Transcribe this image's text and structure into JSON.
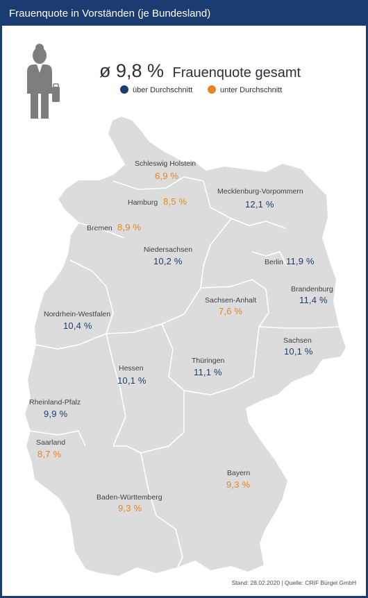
{
  "title": "Frauenquote in Vorständen (je Bundesland)",
  "average": {
    "value": "ø 9,8 %",
    "label": "Frauenquote gesamt"
  },
  "legend": [
    {
      "label": "über Durchschnitt",
      "color": "#1b3c70"
    },
    {
      "label": "unter Durchschnitt",
      "color": "#e8841d"
    }
  ],
  "colors": {
    "above": "#1b3c70",
    "below": "#e8841d",
    "map_fill": "#dcdcdc",
    "border": "#ffffff"
  },
  "states": [
    {
      "name": "Schleswig Holstein",
      "value": "6,9 %",
      "status": "below"
    },
    {
      "name": "Hamburg",
      "value": "8,5 %",
      "status": "below"
    },
    {
      "name": "Mecklenburg-Vorpommern",
      "value": "12,1 %",
      "status": "above"
    },
    {
      "name": "Bremen",
      "value": "8,9 %",
      "status": "below"
    },
    {
      "name": "Niedersachsen",
      "value": "10,2 %",
      "status": "above"
    },
    {
      "name": "Berlin",
      "value": "11,9 %",
      "status": "above"
    },
    {
      "name": "Brandenburg",
      "value": "11,4 %",
      "status": "above"
    },
    {
      "name": "Sachsen-Anhalt",
      "value": "7,6 %",
      "status": "below"
    },
    {
      "name": "Nordrhein-Westfalen",
      "value": "10,4 %",
      "status": "above"
    },
    {
      "name": "Sachsen",
      "value": "10,1 %",
      "status": "above"
    },
    {
      "name": "Hessen",
      "value": "10,1 %",
      "status": "above"
    },
    {
      "name": "Thüringen",
      "value": "11,1 %",
      "status": "above"
    },
    {
      "name": "Rheinland-Pfalz",
      "value": "9,9 %",
      "status": "above"
    },
    {
      "name": "Saarland",
      "value": "8,7 %",
      "status": "below"
    },
    {
      "name": "Bayern",
      "value": "9,3 %",
      "status": "below"
    },
    {
      "name": "Baden-Württemberg",
      "value": "9,3 %",
      "status": "below"
    }
  ],
  "source": "Stand: 28.02.2020 | Quelle: CRIF Bürgel GmbH"
}
